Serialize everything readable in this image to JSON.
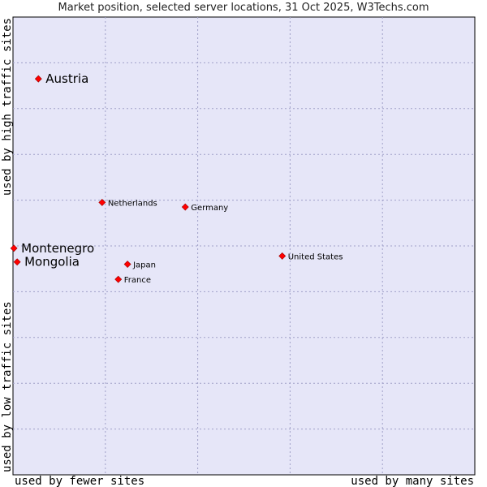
{
  "chart_data": {
    "type": "scatter",
    "title": "Market position, selected server locations, 31 Oct 2025, W3Techs.com",
    "xlabel_left": "used by fewer sites",
    "xlabel_right": "used by many sites",
    "ylabel_bottom": "used by low traffic sites",
    "ylabel_top": "used by high traffic sites",
    "xlim": [
      0,
      100
    ],
    "ylim": [
      0,
      100
    ],
    "grid": true,
    "points": [
      {
        "label": "Austria",
        "x": 5.5,
        "y": 86.5,
        "emphasis": true
      },
      {
        "label": "Netherlands",
        "x": 19.3,
        "y": 59.5,
        "emphasis": false
      },
      {
        "label": "Germany",
        "x": 37.3,
        "y": 58.5,
        "emphasis": false
      },
      {
        "label": "Montenegro",
        "x": 0.2,
        "y": 49.5,
        "emphasis": true
      },
      {
        "label": "Mongolia",
        "x": 0.9,
        "y": 46.5,
        "emphasis": true
      },
      {
        "label": "Japan",
        "x": 24.8,
        "y": 46.0,
        "emphasis": false
      },
      {
        "label": "United States",
        "x": 58.3,
        "y": 47.8,
        "emphasis": false
      },
      {
        "label": "France",
        "x": 22.8,
        "y": 42.7,
        "emphasis": false
      }
    ],
    "colors": {
      "plot_background": "#e6e6f8",
      "grid": "#a0a0c8",
      "marker": "#ff0000",
      "frame": "#000000"
    }
  }
}
